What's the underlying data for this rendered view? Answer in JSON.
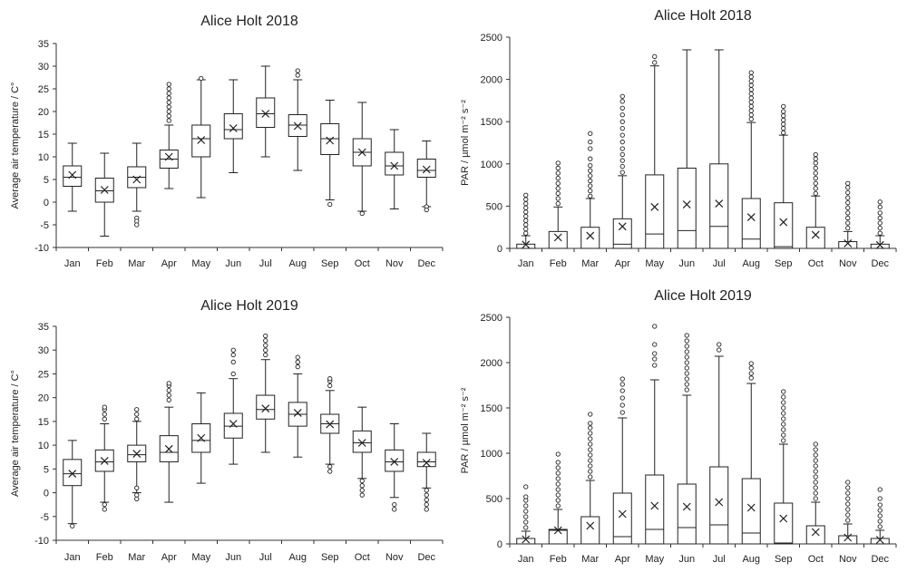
{
  "chart_data": [
    {
      "type": "box",
      "title": "Alice Holt 2018",
      "ylabel": "Average air temperature / C°",
      "ylim": [
        -10,
        35
      ],
      "yticks": [
        -10,
        -5,
        0,
        5,
        10,
        15,
        20,
        25,
        30,
        35
      ],
      "categories": [
        "Jan",
        "Feb",
        "Mar",
        "Apr",
        "May",
        "Jun",
        "Jul",
        "Aug",
        "Sep",
        "Oct",
        "Nov",
        "Dec"
      ],
      "boxes": [
        {
          "lw": -2,
          "q1": 3.5,
          "med": 5.5,
          "q3": 8,
          "uw": 13,
          "mean": 6,
          "out": []
        },
        {
          "lw": -7.5,
          "q1": 0,
          "med": 2.5,
          "q3": 5.3,
          "uw": 10.8,
          "mean": 2.7,
          "out": []
        },
        {
          "lw": -2,
          "q1": 3.2,
          "med": 5.5,
          "q3": 7.8,
          "uw": 13,
          "mean": 5,
          "out": [
            -3.5,
            -4.2,
            -5
          ]
        },
        {
          "lw": 3,
          "q1": 7.5,
          "med": 9.5,
          "q3": 11.5,
          "uw": 17,
          "mean": 10,
          "out": [
            18,
            19,
            20,
            21,
            22,
            23,
            24,
            25,
            26
          ]
        },
        {
          "lw": 1,
          "q1": 10,
          "med": 14,
          "q3": 17,
          "uw": 27,
          "mean": 13.7,
          "out": [
            27.3
          ]
        },
        {
          "lw": 6.5,
          "q1": 14,
          "med": 16,
          "q3": 19.5,
          "uw": 27,
          "mean": 16.3,
          "out": []
        },
        {
          "lw": 10,
          "q1": 16.5,
          "med": 19.5,
          "q3": 23,
          "uw": 30,
          "mean": 19.5,
          "out": []
        },
        {
          "lw": 7,
          "q1": 14.5,
          "med": 17,
          "q3": 19.3,
          "uw": 27,
          "mean": 16.8,
          "out": [
            28,
            29
          ]
        },
        {
          "lw": 0.5,
          "q1": 10.5,
          "med": 14,
          "q3": 17.3,
          "uw": 22.5,
          "mean": 13.6,
          "out": [
            -0.5
          ]
        },
        {
          "lw": -2,
          "q1": 8,
          "med": 11,
          "q3": 14,
          "uw": 22,
          "mean": 11,
          "out": [
            -2.5
          ]
        },
        {
          "lw": -1.5,
          "q1": 6,
          "med": 8,
          "q3": 11,
          "uw": 16,
          "mean": 8,
          "out": []
        },
        {
          "lw": -1,
          "q1": 5.5,
          "med": 7,
          "q3": 9.5,
          "uw": 13.5,
          "mean": 7.2,
          "out": [
            -1,
            -1.7
          ]
        }
      ]
    },
    {
      "type": "box",
      "title": "Alice Holt 2018",
      "ylabel": "PAR / µmol m⁻² s⁻²",
      "ylim": [
        0,
        2500
      ],
      "yticks": [
        0,
        500,
        1000,
        1500,
        2000,
        2500
      ],
      "categories": [
        "Jan",
        "Feb",
        "Mar",
        "Apr",
        "May",
        "Jun",
        "Jul",
        "Aug",
        "Sep",
        "Oct",
        "Nov",
        "Dec"
      ],
      "boxes": [
        {
          "lw": 0,
          "q1": 0,
          "med": 0,
          "q3": 50,
          "uw": 150,
          "mean": 45,
          "out": [
            180,
            230,
            280,
            330,
            380,
            430,
            480,
            530,
            580,
            630
          ]
        },
        {
          "lw": 0,
          "q1": 0,
          "med": 0,
          "q3": 200,
          "uw": 490,
          "mean": 130,
          "out": [
            530,
            590,
            650,
            710,
            770,
            830,
            890,
            950,
            1010
          ]
        },
        {
          "lw": 0,
          "q1": 0,
          "med": 0,
          "q3": 250,
          "uw": 590,
          "mean": 150,
          "out": [
            620,
            680,
            740,
            800,
            860,
            920,
            980,
            1060,
            1180,
            1260,
            1360
          ]
        },
        {
          "lw": 0,
          "q1": 0,
          "med": 50,
          "q3": 350,
          "uw": 860,
          "mean": 260,
          "out": [
            900,
            970,
            1040,
            1110,
            1180,
            1260,
            1340,
            1420,
            1500,
            1580,
            1660,
            1740,
            1800
          ]
        },
        {
          "lw": 0,
          "q1": 0,
          "med": 170,
          "q3": 870,
          "uw": 2160,
          "mean": 490,
          "out": [
            2200,
            2270
          ]
        },
        {
          "lw": 0,
          "q1": 0,
          "med": 210,
          "q3": 950,
          "uw": 2350,
          "mean": 520,
          "out": []
        },
        {
          "lw": 0,
          "q1": 0,
          "med": 260,
          "q3": 1000,
          "uw": 2350,
          "mean": 530,
          "out": []
        },
        {
          "lw": 0,
          "q1": 0,
          "med": 110,
          "q3": 590,
          "uw": 1490,
          "mean": 370,
          "out": [
            1530,
            1580,
            1630,
            1680,
            1730,
            1780,
            1830,
            1880,
            1930,
            1980,
            2030,
            2080
          ]
        },
        {
          "lw": 0,
          "q1": 0,
          "med": 20,
          "q3": 540,
          "uw": 1340,
          "mean": 310,
          "out": [
            1370,
            1420,
            1470,
            1520,
            1570,
            1620,
            1680
          ]
        },
        {
          "lw": 0,
          "q1": 0,
          "med": 0,
          "q3": 250,
          "uw": 620,
          "mean": 160,
          "out": [
            650,
            710,
            770,
            830,
            890,
            950,
            1010,
            1060,
            1110
          ]
        },
        {
          "lw": 0,
          "q1": 0,
          "med": 0,
          "q3": 80,
          "uw": 200,
          "mean": 60,
          "out": [
            240,
            300,
            360,
            420,
            480,
            540,
            600,
            660,
            720,
            770
          ]
        },
        {
          "lw": 0,
          "q1": 0,
          "med": 0,
          "q3": 50,
          "uw": 150,
          "mean": 40,
          "out": [
            180,
            240,
            300,
            360,
            420,
            490,
            550
          ]
        }
      ]
    },
    {
      "type": "box",
      "title": "Alice Holt 2019",
      "ylabel": "Average air temperature / C°",
      "ylim": [
        -10,
        35
      ],
      "yticks": [
        -10,
        -5,
        0,
        5,
        10,
        15,
        20,
        25,
        30,
        35
      ],
      "categories": [
        "Jan",
        "Feb",
        "Mar",
        "Apr",
        "May",
        "Jun",
        "Jul",
        "Aug",
        "Sep",
        "Oct",
        "Nov",
        "Dec"
      ],
      "boxes": [
        {
          "lw": -6.5,
          "q1": 1.5,
          "med": 4,
          "q3": 7,
          "uw": 11,
          "mean": 4,
          "out": [
            -7
          ]
        },
        {
          "lw": -2,
          "q1": 4.5,
          "med": 6.5,
          "q3": 9,
          "uw": 14.5,
          "mean": 6.7,
          "out": [
            15.5,
            16.5,
            17.5,
            18,
            -2.5,
            -3.5
          ]
        },
        {
          "lw": 0,
          "q1": 6.5,
          "med": 8,
          "q3": 10,
          "uw": 15,
          "mean": 8.2,
          "out": [
            15.5,
            16.5,
            17.5,
            1,
            -0.5,
            -1.3
          ]
        },
        {
          "lw": -2,
          "q1": 6.5,
          "med": 8.5,
          "q3": 12,
          "uw": 18,
          "mean": 9.2,
          "out": [
            19.5,
            20.5,
            21.5,
            22.5,
            23
          ]
        },
        {
          "lw": 2,
          "q1": 8.5,
          "med": 11,
          "q3": 14.5,
          "uw": 21,
          "mean": 11.5,
          "out": []
        },
        {
          "lw": 6,
          "q1": 11.5,
          "med": 14,
          "q3": 16.7,
          "uw": 24,
          "mean": 14.5,
          "out": [
            25,
            27.5,
            29,
            30
          ]
        },
        {
          "lw": 8.5,
          "q1": 15.5,
          "med": 17.5,
          "q3": 20.5,
          "uw": 28,
          "mean": 17.7,
          "out": [
            29,
            30,
            31,
            32,
            33
          ]
        },
        {
          "lw": 7.5,
          "q1": 14,
          "med": 16.5,
          "q3": 19,
          "uw": 25,
          "mean": 16.8,
          "out": [
            26.5,
            27.5,
            28.5
          ]
        },
        {
          "lw": 6,
          "q1": 12.5,
          "med": 14.5,
          "q3": 16.5,
          "uw": 21.5,
          "mean": 14.4,
          "out": [
            22.5,
            23.5,
            24,
            5.5,
            4.5
          ]
        },
        {
          "lw": 3,
          "q1": 8.5,
          "med": 10.5,
          "q3": 13,
          "uw": 18,
          "mean": 10.5,
          "out": [
            2.5,
            1.5,
            0.5,
            -0.5
          ]
        },
        {
          "lw": -1,
          "q1": 4.5,
          "med": 6.5,
          "q3": 9,
          "uw": 14.5,
          "mean": 6.5,
          "out": [
            -2.5,
            -3.5
          ]
        },
        {
          "lw": 1,
          "q1": 5.5,
          "med": 6.5,
          "q3": 8.5,
          "uw": 12.5,
          "mean": 6.3,
          "out": [
            0.5,
            -0.5,
            -1.5,
            -2.5,
            -3.5
          ]
        }
      ]
    },
    {
      "type": "box",
      "title": "Alice Holt 2019",
      "ylabel": "PAR / µmol m⁻² s⁻²",
      "ylim": [
        0,
        2500
      ],
      "yticks": [
        0,
        500,
        1000,
        1500,
        2000,
        2500
      ],
      "categories": [
        "Jan",
        "Feb",
        "Mar",
        "Apr",
        "May",
        "Jun",
        "Jul",
        "Aug",
        "Sep",
        "Oct",
        "Nov",
        "Dec"
      ],
      "boxes": [
        {
          "lw": 0,
          "q1": 0,
          "med": 0,
          "q3": 60,
          "uw": 140,
          "mean": 50,
          "out": [
            180,
            240,
            300,
            360,
            420,
            480,
            520,
            630
          ]
        },
        {
          "lw": 0,
          "q1": 0,
          "med": 150,
          "q3": 160,
          "uw": 380,
          "mean": 150,
          "out": [
            420,
            480,
            540,
            600,
            660,
            720,
            780,
            840,
            900,
            990
          ]
        },
        {
          "lw": 0,
          "q1": 0,
          "med": 0,
          "q3": 300,
          "uw": 700,
          "mean": 200,
          "out": [
            740,
            800,
            860,
            920,
            980,
            1040,
            1100,
            1160,
            1220,
            1280,
            1330,
            1430
          ]
        },
        {
          "lw": 0,
          "q1": 0,
          "med": 80,
          "q3": 560,
          "uw": 1390,
          "mean": 330,
          "out": [
            1450,
            1530,
            1610,
            1690,
            1760,
            1820
          ]
        },
        {
          "lw": 0,
          "q1": 0,
          "med": 160,
          "q3": 760,
          "uw": 1810,
          "mean": 420,
          "out": [
            1970,
            2040,
            2100,
            2200,
            2400
          ]
        },
        {
          "lw": 0,
          "q1": 0,
          "med": 180,
          "q3": 660,
          "uw": 1640,
          "mean": 410,
          "out": [
            1700,
            1760,
            1820,
            1880,
            1940,
            2000,
            2060,
            2120,
            2180,
            2240,
            2300
          ]
        },
        {
          "lw": 0,
          "q1": 0,
          "med": 210,
          "q3": 850,
          "uw": 2070,
          "mean": 460,
          "out": [
            2140,
            2200
          ]
        },
        {
          "lw": 0,
          "q1": 0,
          "med": 120,
          "q3": 720,
          "uw": 1770,
          "mean": 400,
          "out": [
            1830,
            1880,
            1940,
            1990
          ]
        },
        {
          "lw": 0,
          "q1": 0,
          "med": 10,
          "q3": 450,
          "uw": 1100,
          "mean": 280,
          "out": [
            1140,
            1200,
            1260,
            1320,
            1380,
            1440,
            1500,
            1560,
            1620,
            1680
          ]
        },
        {
          "lw": 0,
          "q1": 0,
          "med": 0,
          "q3": 200,
          "uw": 460,
          "mean": 130,
          "out": [
            500,
            560,
            620,
            680,
            740,
            800,
            860,
            920,
            980,
            1040,
            1100
          ]
        },
        {
          "lw": 0,
          "q1": 0,
          "med": 0,
          "q3": 90,
          "uw": 220,
          "mean": 70,
          "out": [
            260,
            320,
            380,
            440,
            500,
            560,
            620,
            680
          ]
        },
        {
          "lw": 0,
          "q1": 0,
          "med": 0,
          "q3": 60,
          "uw": 150,
          "mean": 45,
          "out": [
            190,
            250,
            310,
            370,
            430,
            500,
            600
          ]
        }
      ]
    }
  ]
}
